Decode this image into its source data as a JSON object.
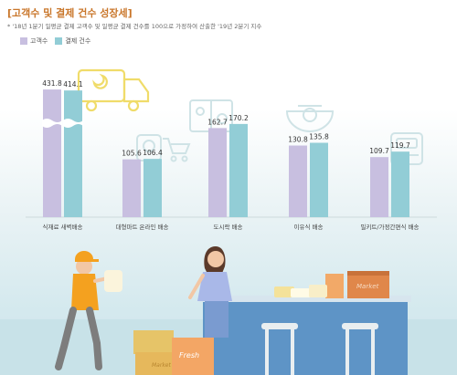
{
  "header": {
    "title": "[고객수 및 결제 건수 성장세]",
    "note": "* '18년 1분기 일평균 결제 고객수 및 일평균 결제 건수를 100으로 가정하여 산출한 '19년 2분기 지수"
  },
  "legend": [
    {
      "label": "고객수",
      "color": "#c8bfe0"
    },
    {
      "label": "결제 건수",
      "color": "#92cdd6"
    }
  ],
  "illustration": {
    "box_labels": [
      "Market",
      "Market",
      "Fresh",
      "Market"
    ]
  },
  "chart_data": {
    "type": "bar",
    "categories": [
      "식재료 새벽배송",
      "대형마트 온라인 배송",
      "도시락 배송",
      "이유식 배송",
      "밀키트/가정간편식 배송"
    ],
    "series": [
      {
        "name": "고객수",
        "values": [
          431.8,
          105.6,
          162.7,
          130.8,
          109.7
        ],
        "color": "#c8bfe0"
      },
      {
        "name": "결제 건수",
        "values": [
          414.1,
          106.4,
          170.2,
          135.8,
          119.7
        ],
        "color": "#92cdd6"
      }
    ],
    "title": "[고객수 및 결제 건수 성장세]",
    "axis_break": true,
    "grid": false,
    "legend_position": "top-left"
  }
}
